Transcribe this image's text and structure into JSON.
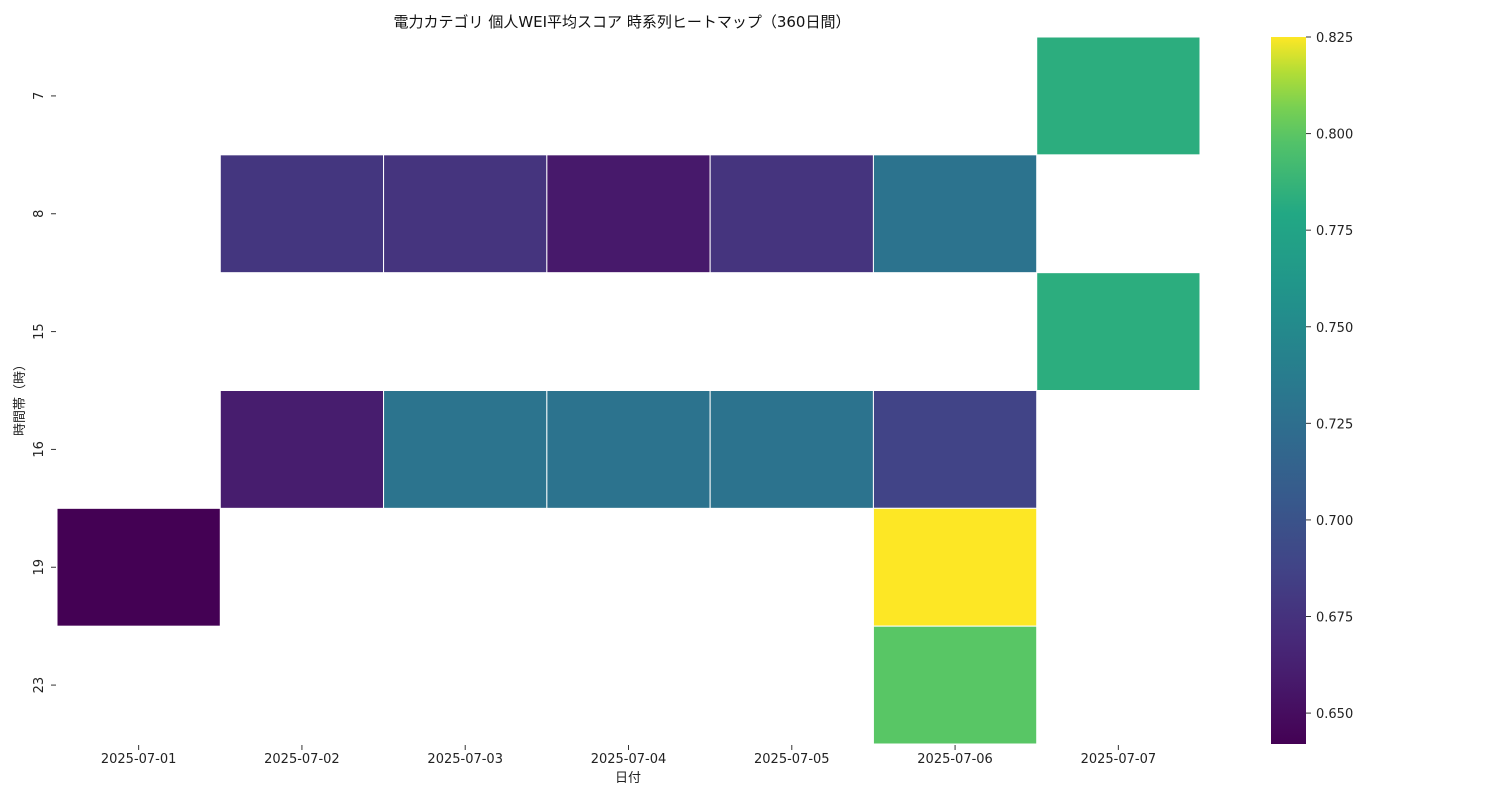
{
  "chart_data": {
    "type": "heatmap",
    "title": "電力カテゴリ 個人WEI平均スコア 時系列ヒートマップ（360日間）",
    "xlabel": "日付",
    "ylabel": "時間帯（時）",
    "x": [
      "2025-07-01",
      "2025-07-02",
      "2025-07-03",
      "2025-07-04",
      "2025-07-05",
      "2025-07-06",
      "2025-07-07"
    ],
    "y": [
      "7",
      "8",
      "15",
      "16",
      "19",
      "23"
    ],
    "values": [
      [
        null,
        null,
        null,
        null,
        null,
        null,
        0.783
      ],
      [
        null,
        0.678,
        0.676,
        0.658,
        0.676,
        0.729,
        null
      ],
      [
        null,
        null,
        null,
        null,
        null,
        null,
        0.783
      ],
      [
        null,
        0.66,
        0.73,
        0.729,
        0.729,
        0.688,
        null
      ],
      [
        0.642,
        null,
        null,
        null,
        null,
        0.825,
        null
      ],
      [
        null,
        null,
        null,
        null,
        null,
        0.8,
        null
      ]
    ],
    "colormap": "viridis",
    "vmin": 0.642,
    "vmax": 0.825,
    "colorbar_ticks": [
      0.65,
      0.675,
      0.7,
      0.725,
      0.75,
      0.775,
      0.8,
      0.825
    ],
    "colorbar_tick_labels": [
      "0.650",
      "0.675",
      "0.700",
      "0.725",
      "0.750",
      "0.775",
      "0.800",
      "0.825"
    ]
  }
}
